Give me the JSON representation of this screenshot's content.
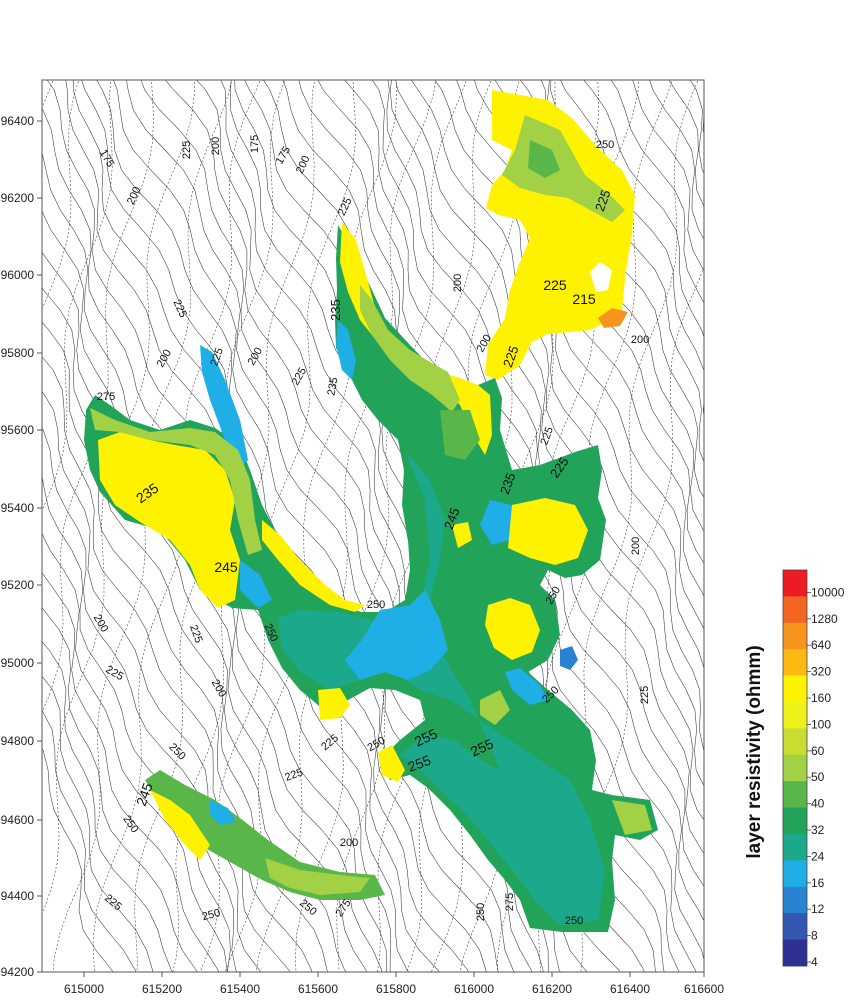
{
  "map": {
    "x_ticks": [
      "615000",
      "615200",
      "615400",
      "615600",
      "615800",
      "616000",
      "616200",
      "616400",
      "616600"
    ],
    "y_ticks": [
      "94200",
      "94400",
      "94600",
      "94800",
      "95000",
      "95200",
      "95400",
      "95600",
      "95800",
      "96000",
      "96200",
      "96400"
    ],
    "contour_labels": [
      {
        "text": "175"
      },
      {
        "text": "200"
      },
      {
        "text": "225"
      },
      {
        "text": "200"
      },
      {
        "text": "175"
      },
      {
        "text": "175"
      },
      {
        "text": "200"
      },
      {
        "text": "225"
      },
      {
        "text": "250"
      },
      {
        "text": "225"
      },
      {
        "text": "200"
      },
      {
        "text": "225"
      },
      {
        "text": "215"
      },
      {
        "text": "235"
      },
      {
        "text": "200"
      },
      {
        "text": "225"
      },
      {
        "text": "200"
      },
      {
        "text": "225"
      },
      {
        "text": "200"
      },
      {
        "text": "225"
      },
      {
        "text": "235"
      },
      {
        "text": "200"
      },
      {
        "text": "225"
      },
      {
        "text": "275"
      },
      {
        "text": "225"
      },
      {
        "text": "235"
      },
      {
        "text": "235"
      },
      {
        "text": "225"
      },
      {
        "text": "245"
      },
      {
        "text": "245"
      },
      {
        "text": "200"
      },
      {
        "text": "250"
      },
      {
        "text": "200"
      },
      {
        "text": "225"
      },
      {
        "text": "250"
      },
      {
        "text": "250"
      },
      {
        "text": "225"
      },
      {
        "text": "200"
      },
      {
        "text": "250"
      },
      {
        "text": "225"
      },
      {
        "text": "225"
      },
      {
        "text": "250"
      },
      {
        "text": "255"
      },
      {
        "text": "255"
      },
      {
        "text": "255"
      },
      {
        "text": "250"
      },
      {
        "text": "225"
      },
      {
        "text": "245"
      },
      {
        "text": "250"
      },
      {
        "text": "200"
      },
      {
        "text": "225"
      },
      {
        "text": "250"
      },
      {
        "text": "250"
      },
      {
        "text": "275"
      },
      {
        "text": "250"
      },
      {
        "text": "275"
      },
      {
        "text": "250"
      }
    ]
  },
  "legend": {
    "title": "layer resistivity (ohmm)",
    "labels": [
      "10000",
      "1280",
      "640",
      "320",
      "160",
      "100",
      "60",
      "50",
      "40",
      "32",
      "24",
      "16",
      "12",
      "8",
      "4"
    ],
    "colors": [
      "#ed1c24",
      "#f26522",
      "#f7941d",
      "#fdb913",
      "#fff200",
      "#eef21a",
      "#c8dc32",
      "#a2d146",
      "#59b74a",
      "#22a35a",
      "#1ca98b",
      "#1faee6",
      "#2a82d2",
      "#3358b0",
      "#2e3192"
    ]
  }
}
